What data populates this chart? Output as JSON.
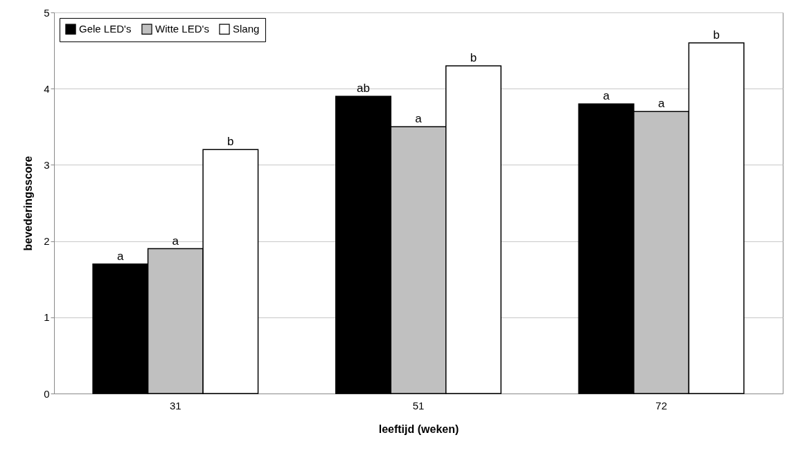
{
  "chart_data": {
    "type": "bar",
    "xlabel": "leeftijd (weken)",
    "ylabel": "bevederingsscore",
    "categories": [
      "31",
      "51",
      "72"
    ],
    "series": [
      {
        "name": "Gele LED's",
        "color": "#000000",
        "values": [
          1.7,
          3.9,
          3.8
        ],
        "value_labels": [
          "a",
          "ab",
          "a"
        ]
      },
      {
        "name": "Witte LED's",
        "color": "#c0c0c0",
        "values": [
          1.9,
          3.5,
          3.7
        ],
        "value_labels": [
          "a",
          "a",
          "a"
        ]
      },
      {
        "name": "Slang",
        "color": "#ffffff",
        "values": [
          3.2,
          4.3,
          4.6
        ],
        "value_labels": [
          "b",
          "b",
          "b"
        ]
      }
    ],
    "ylim": [
      0,
      5
    ],
    "yticks": [
      0,
      1,
      2,
      3,
      4,
      5
    ],
    "grid": "y",
    "legend": "top left"
  }
}
